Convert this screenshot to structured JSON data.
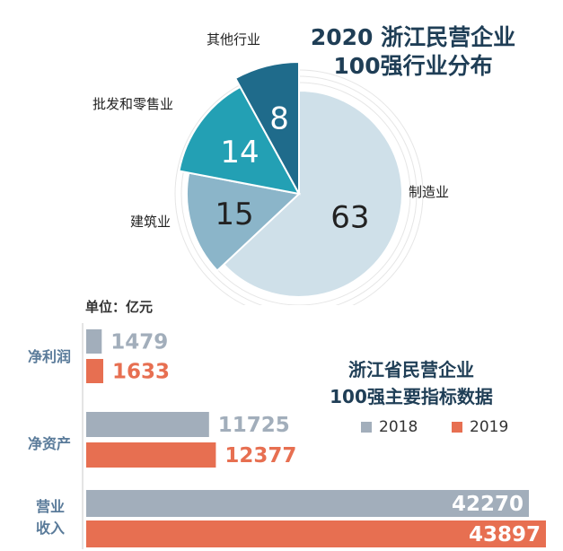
{
  "colors": {
    "manufacturing": "#cfe0e9",
    "construction": "#8bb5c9",
    "wholesale_retail": "#23a0b4",
    "other": "#1f6b8b",
    "y2018": "#a2aebb",
    "y2019": "#e76f51",
    "title": "#1f3e56",
    "category": "#5a7b9a"
  },
  "pie": {
    "title_line1": "2020 浙江民营企业",
    "title_line2": "100强行业分布"
  },
  "bar": {
    "title_line1": "浙江省民营企业",
    "title_line2": "100强主要指标数据",
    "unit": "单位：亿元",
    "legend": [
      "2018",
      "2019"
    ]
  },
  "chart_data": [
    {
      "type": "pie",
      "title": "2020 浙江民营企业 100强行业分布",
      "slices": [
        {
          "label": "制造业",
          "value": 63
        },
        {
          "label": "建筑业",
          "value": 15
        },
        {
          "label": "批发和零售业",
          "value": 14
        },
        {
          "label": "其他行业",
          "value": 8
        }
      ]
    },
    {
      "type": "bar",
      "orientation": "horizontal",
      "title": "浙江省民营企业 100强主要指标数据",
      "unit": "亿元",
      "categories": [
        "净利润",
        "净资产",
        "营业收入"
      ],
      "series": [
        {
          "name": "2018",
          "values": [
            1479,
            11725,
            42270
          ]
        },
        {
          "name": "2019",
          "values": [
            1633,
            12377,
            43897
          ]
        }
      ]
    }
  ]
}
